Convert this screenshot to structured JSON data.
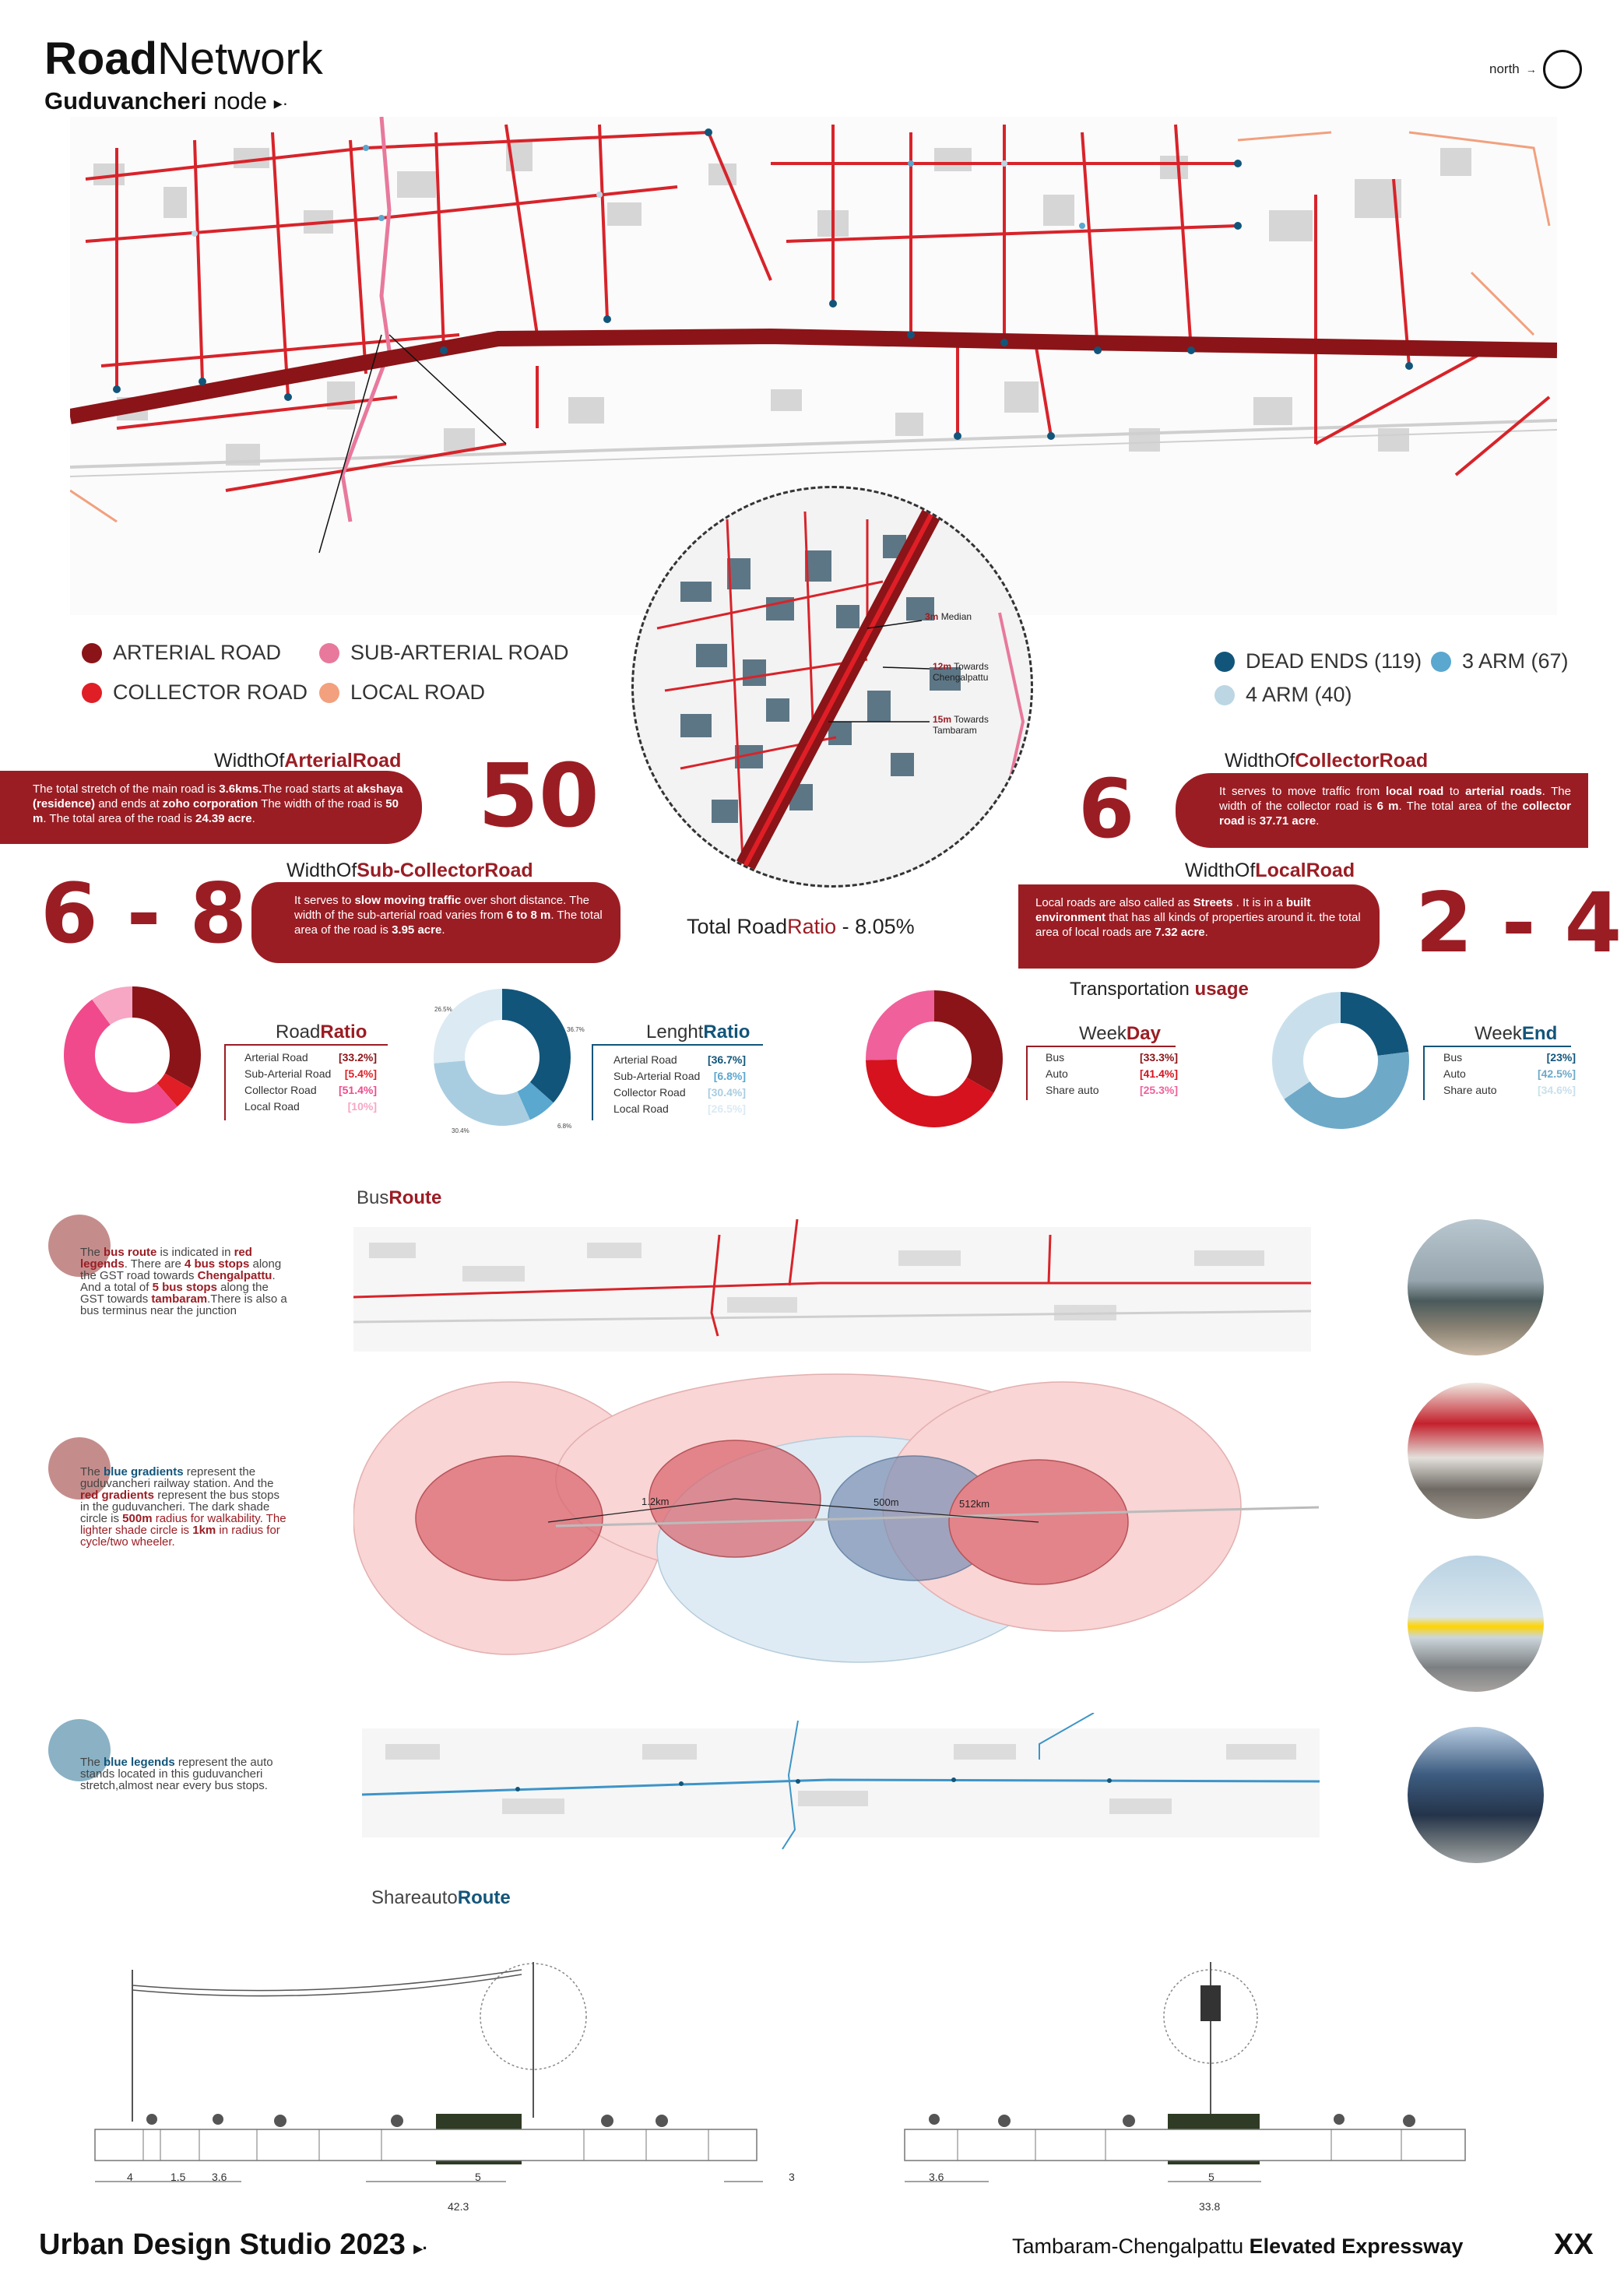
{
  "header": {
    "title_bold": "Road",
    "title_rest": "Network",
    "subtitle_bold": "Guduvancheri",
    "subtitle_rest": "node",
    "north_label": "north"
  },
  "legend_roads": [
    {
      "label": "ARTERIAL ROAD",
      "color": "#8b1418"
    },
    {
      "label": "SUB-ARTERIAL ROAD",
      "color": "#e8799c"
    },
    {
      "label": "COLLECTOR ROAD",
      "color": "#e01e26"
    },
    {
      "label": "LOCAL ROAD",
      "color": "#f2a07e"
    }
  ],
  "legend_junctions": [
    {
      "label": "DEAD ENDS (119)",
      "color": "#12557a"
    },
    {
      "label": "3 ARM (67)",
      "color": "#5aa7cf"
    },
    {
      "label": "4 ARM (40)",
      "color": "#bcd6e3"
    }
  ],
  "inset": {
    "median": "3m",
    "median_label": "Median",
    "towards_chengalpattu": "12m",
    "towards_chengalpattu_label": "Towards Chengalpattu",
    "towards_tambaram": "15m",
    "towards_tambaram_label": "Towards Tambaram"
  },
  "arterial": {
    "heading_pre": "WidthOf",
    "heading_bold": "ArterialRoad",
    "big": "50",
    "t1": "The total stretch of the main road is ",
    "b1": "3.6kms.",
    "t2": "The road starts at ",
    "b2": "akshaya (residence)",
    "t3": " and ends at ",
    "b3": "zoho corporation",
    "t4": " The width of the road is ",
    "b4": "50 m",
    "t5": ". The total area of the road is ",
    "b5": "24.39 acre",
    "t6": "."
  },
  "collector": {
    "heading_pre": "WidthOf",
    "heading_bold": "CollectorRoad",
    "big": "6",
    "t1": "It serves to move traffic from ",
    "b1": "local road",
    "t2": " to ",
    "b2": "arterial roads",
    "t3": ". The width of the collector road is ",
    "b3": "6 m",
    "t4": ". The total area of the ",
    "b4": "collector road",
    "t5": " is ",
    "b5": "37.71 acre",
    "t6": "."
  },
  "subcollector": {
    "heading_pre": "WidthOf",
    "heading_bold": "Sub-CollectorRoad",
    "big": "6 - 8",
    "t1": "It serves to ",
    "b1": "slow moving traffic",
    "t2": " over short distance. The width of the sub-arterial road varies from ",
    "b2": "6 to 8 m",
    "t3": ". The total area of the road is ",
    "b3": "3.95 acre",
    "t4": "."
  },
  "local": {
    "heading_pre": "WidthOf",
    "heading_bold": "LocalRoad",
    "big": "2 - 4",
    "t1": "Local roads are also called as ",
    "b1": "Streets",
    "t2": " . It is in a ",
    "b2": "built environment",
    "t3": " that has all kinds of properties around it. the total area of local roads are ",
    "b3": "7.32 acre",
    "t4": "."
  },
  "total_ratio": {
    "pre": "Total Road",
    "mid": "Ratio",
    "post": " - 8.05%"
  },
  "transport_usage": {
    "pre": "Transportation ",
    "bold": "usage"
  },
  "charts": [
    {
      "title_pre": "Road",
      "title_bold": "Ratio",
      "accent": "#9b1d24",
      "slices": [
        {
          "label": "Arterial Road",
          "value": 33.2,
          "text": "[33.2%]",
          "color": "#8b1418"
        },
        {
          "label": "Sub-Arterial Road",
          "value": 5.4,
          "text": "[5.4%]",
          "color": "#e01e26"
        },
        {
          "label": "Collector Road",
          "value": 51.4,
          "text": "[51.4%]",
          "color": "#f04a8c"
        },
        {
          "label": "Local Road",
          "value": 10,
          "text": "[10%]",
          "color": "#f7a6c4"
        }
      ]
    },
    {
      "title_pre": "Lenght",
      "title_bold": "Ratio",
      "accent": "#12557a",
      "slices": [
        {
          "label": "Arterial Road",
          "value": 36.7,
          "text": "[36.7%]",
          "color": "#12557a"
        },
        {
          "label": "Sub-Arterial Road",
          "value": 6.8,
          "text": "[6.8%]",
          "color": "#5aa7cf"
        },
        {
          "label": "Collector Road",
          "value": 30.4,
          "text": "[30.4%]",
          "color": "#a9cde0"
        },
        {
          "label": "Local Road",
          "value": 26.5,
          "text": "[26.5%]",
          "color": "#dbeaf3"
        }
      ],
      "small_labels": [
        "36.7%",
        "6.8%",
        "30.4%",
        "26.5%"
      ]
    },
    {
      "title_pre": "Week",
      "title_bold": "Day",
      "accent": "#9b1d24",
      "slices": [
        {
          "label": "Bus",
          "value": 33.3,
          "text": "[33.3%]",
          "color": "#8b1418"
        },
        {
          "label": "Auto",
          "value": 41.4,
          "text": "[41.4%]",
          "color": "#d5121e"
        },
        {
          "label": "Share auto",
          "value": 25.3,
          "text": "[25.3%]",
          "color": "#f0609a"
        }
      ]
    },
    {
      "title_pre": "Week",
      "title_bold": "End",
      "accent": "#12557a",
      "slices": [
        {
          "label": "Bus",
          "value": 23,
          "text": "[23%]",
          "color": "#12557a"
        },
        {
          "label": "Auto",
          "value": 42.5,
          "text": "[42.5%]",
          "color": "#6ea9c8"
        },
        {
          "label": "Share auto",
          "value": 34.6,
          "text": "[34.6%]",
          "color": "#c9e0ec"
        }
      ]
    }
  ],
  "bus_route": {
    "label_pre": "Bus",
    "label_bold": "Route",
    "n1": "The ",
    "b1": "bus route",
    "n2": " is indicated in ",
    "b2": "red legends",
    "n3": ". There are ",
    "b3": "4 bus stops",
    "n4": " along the GST road towards ",
    "b4": "Chengalpattu",
    "n5": ". And a total of ",
    "b5": "5 bus stops",
    "n6": " along the GST towards ",
    "b6": "tambaram",
    "n7": ".There is also a bus terminus near the junction"
  },
  "walk": {
    "n1": "The ",
    "b1": "blue gradients",
    "n2": " represent the guduvancheri railway station. And the ",
    "b2": "red gradients",
    "n3": " represent the bus stops in the guduvancheri. The dark shade circle is ",
    "b3": "500m",
    "n4": " radius for walkability. The lighter shade circle is ",
    "b4": "1km",
    "n5": " in radius for cycle/two wheeler.",
    "lbl1": "1.2km",
    "lbl2": "500m",
    "lbl3": "512km"
  },
  "shareauto": {
    "label_pre": "Shareauto",
    "label_bold": "Route",
    "n1": "The ",
    "b1": "blue legends",
    "n2": " represent the auto stands located in this guduvancheri stretch,almost near every bus stops."
  },
  "sections": {
    "left_dims": [
      "4",
      "1.5",
      "3.6",
      "5",
      "3"
    ],
    "left_total": "42.3",
    "right_dims": [
      "3.6",
      "5"
    ],
    "right_total": "33.8"
  },
  "footer": {
    "studio": "Urban Design Studio 2023",
    "project_pre": "Tambaram-Chengalpattu ",
    "project_bold": "Elevated Expressway",
    "sheet": "XX"
  }
}
